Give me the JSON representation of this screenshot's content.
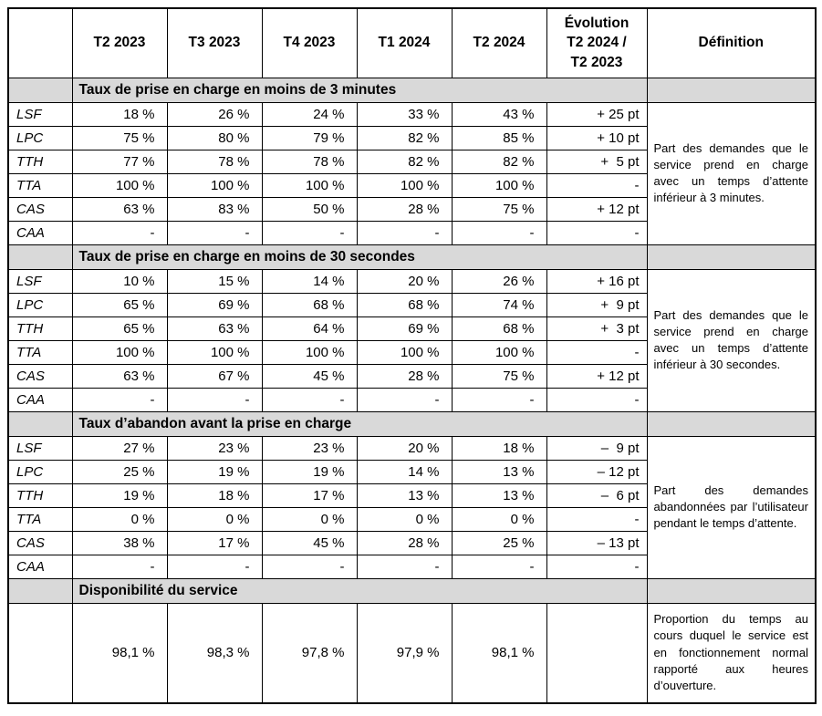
{
  "table": {
    "columns": [
      "",
      "T2 2023",
      "T3 2023",
      "T4 2023",
      "T1 2024",
      "T2 2024",
      "Évolution T2 2024 / T2 2023",
      "Définition"
    ],
    "evolution_header": [
      "Évolution",
      "T2 2024 /",
      "T2 2023"
    ],
    "sections": [
      {
        "title": "Taux de prise en charge en moins de 3 minutes",
        "definition": "Part des demandes que le service prend en charge avec un temps d’attente inférieur à 3 minutes.",
        "rows": [
          {
            "label": "LSF",
            "values": [
              "18 %",
              "26 %",
              "24 %",
              "33 %",
              "43 %"
            ],
            "evolution": "+ 25 pt"
          },
          {
            "label": "LPC",
            "values": [
              "75 %",
              "80 %",
              "79 %",
              "82 %",
              "85 %"
            ],
            "evolution": "+ 10 pt"
          },
          {
            "label": "TTH",
            "values": [
              "77 %",
              "78 %",
              "78 %",
              "82 %",
              "82 %"
            ],
            "evolution": "+  5 pt"
          },
          {
            "label": "TTA",
            "values": [
              "100 %",
              "100 %",
              "100 %",
              "100 %",
              "100 %"
            ],
            "evolution": "-"
          },
          {
            "label": "CAS",
            "values": [
              "63 %",
              "83 %",
              "50 %",
              "28 %",
              "75 %"
            ],
            "evolution": "+ 12 pt"
          },
          {
            "label": "CAA",
            "values": [
              "-",
              "-",
              "-",
              "-",
              "-"
            ],
            "evolution": "-"
          }
        ]
      },
      {
        "title": "Taux de prise en charge en moins de 30 secondes",
        "definition": "Part des demandes que le service prend en charge avec un temps d’attente inférieur à 30 secondes.",
        "rows": [
          {
            "label": "LSF",
            "values": [
              "10 %",
              "15 %",
              "14 %",
              "20 %",
              "26 %"
            ],
            "evolution": "+ 16 pt"
          },
          {
            "label": "LPC",
            "values": [
              "65 %",
              "69 %",
              "68 %",
              "68 %",
              "74 %"
            ],
            "evolution": "+  9 pt"
          },
          {
            "label": "TTH",
            "values": [
              "65 %",
              "63 %",
              "64 %",
              "69 %",
              "68 %"
            ],
            "evolution": "+  3 pt"
          },
          {
            "label": "TTA",
            "values": [
              "100 %",
              "100 %",
              "100 %",
              "100 %",
              "100 %"
            ],
            "evolution": "-"
          },
          {
            "label": "CAS",
            "values": [
              "63 %",
              "67 %",
              "45 %",
              "28 %",
              "75 %"
            ],
            "evolution": "+ 12 pt"
          },
          {
            "label": "CAA",
            "values": [
              "-",
              "-",
              "-",
              "-",
              "-"
            ],
            "evolution": "-"
          }
        ]
      },
      {
        "title": "Taux d’abandon avant la prise en charge",
        "definition": "Part des demandes abandonnées par l’utilisateur pendant le temps d’attente.",
        "rows": [
          {
            "label": "LSF",
            "values": [
              "27 %",
              "23 %",
              "23 %",
              "20 %",
              "18 %"
            ],
            "evolution": "–  9 pt"
          },
          {
            "label": "LPC",
            "values": [
              "25 %",
              "19 %",
              "19 %",
              "14 %",
              "13 %"
            ],
            "evolution": "– 12 pt"
          },
          {
            "label": "TTH",
            "values": [
              "19 %",
              "18 %",
              "17 %",
              "13 %",
              "13 %"
            ],
            "evolution": "–  6 pt"
          },
          {
            "label": "TTA",
            "values": [
              "0 %",
              "0 %",
              "0 %",
              "0 %",
              "0 %"
            ],
            "evolution": "-"
          },
          {
            "label": "CAS",
            "values": [
              "38 %",
              "17 %",
              "45 %",
              "28 %",
              "25 %"
            ],
            "evolution": "– 13 pt"
          },
          {
            "label": "CAA",
            "values": [
              "-",
              "-",
              "-",
              "-",
              "-"
            ],
            "evolution": "-"
          }
        ]
      }
    ],
    "availability": {
      "title": "Disponibilité du service",
      "values": [
        "98,1 %",
        "98,3 %",
        "97,8 %",
        "97,9 %",
        "98,1 %"
      ],
      "evolution": "",
      "definition": "Proportion du temps au cours duquel le service est en fonctionnement normal rapporté aux heures d’ouverture."
    }
  }
}
